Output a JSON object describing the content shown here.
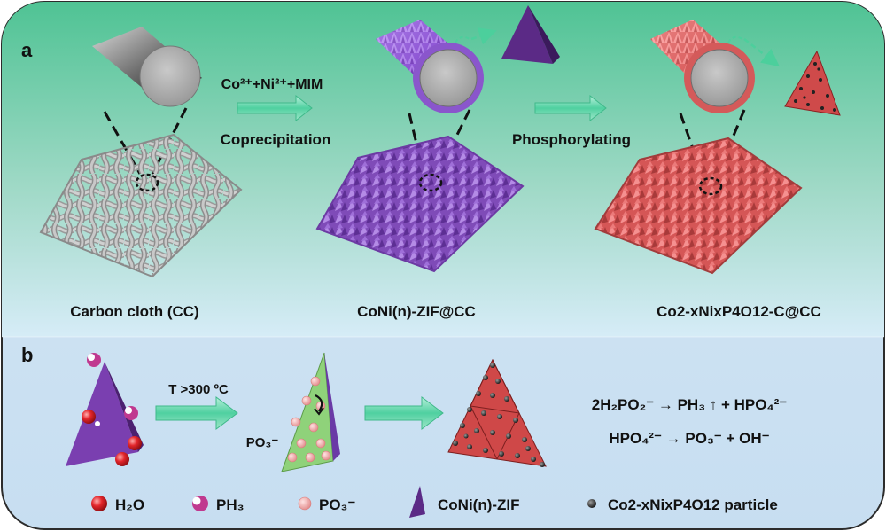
{
  "panel_a": {
    "letter": "a",
    "step1": {
      "reagent": "Co²⁺+Ni²⁺+MIM",
      "process": "Coprecipitation"
    },
    "step2": {
      "process": "Phosphorylating"
    },
    "labels": {
      "carbon_cloth": "Carbon cloth (CC)",
      "zif": "CoNi(n)-ZIF@CC",
      "product": "Co2-xNixP4O12-C@CC"
    }
  },
  "panel_b": {
    "letter": "b",
    "condition": "T >300 ºC",
    "po3_label": "PO₃⁻",
    "equations": [
      "2H₂PO₂⁻ → PH₃ ↑ + HPO₄²⁻",
      "HPO₄²⁻ → PO₃⁻ + OH⁻"
    ]
  },
  "legend": [
    {
      "icon": "h2o-icon",
      "label": "H₂O",
      "color": "#e3262c"
    },
    {
      "icon": "ph3-icon",
      "label": "PH₃",
      "color": "#c0398f"
    },
    {
      "icon": "po3-icon",
      "label": "PO₃⁻",
      "color": "#f0a3a3"
    },
    {
      "icon": "zif-triangle-icon",
      "label": "CoNi(n)-ZIF",
      "color": "#5b2a86"
    },
    {
      "icon": "particle-icon",
      "label": "Co2-xNixP4O12 particle",
      "color": "#222222"
    }
  ],
  "colors": {
    "panel_a_top": "#55c79a",
    "panel_a_bottom": "#d3ecf6",
    "panel_b": "#cfe4f4",
    "arrow": "#5fd6a8",
    "cc_gray": "#b8b8b8",
    "zif_purple": "#8a55c2",
    "product_red": "#d95b5b"
  }
}
